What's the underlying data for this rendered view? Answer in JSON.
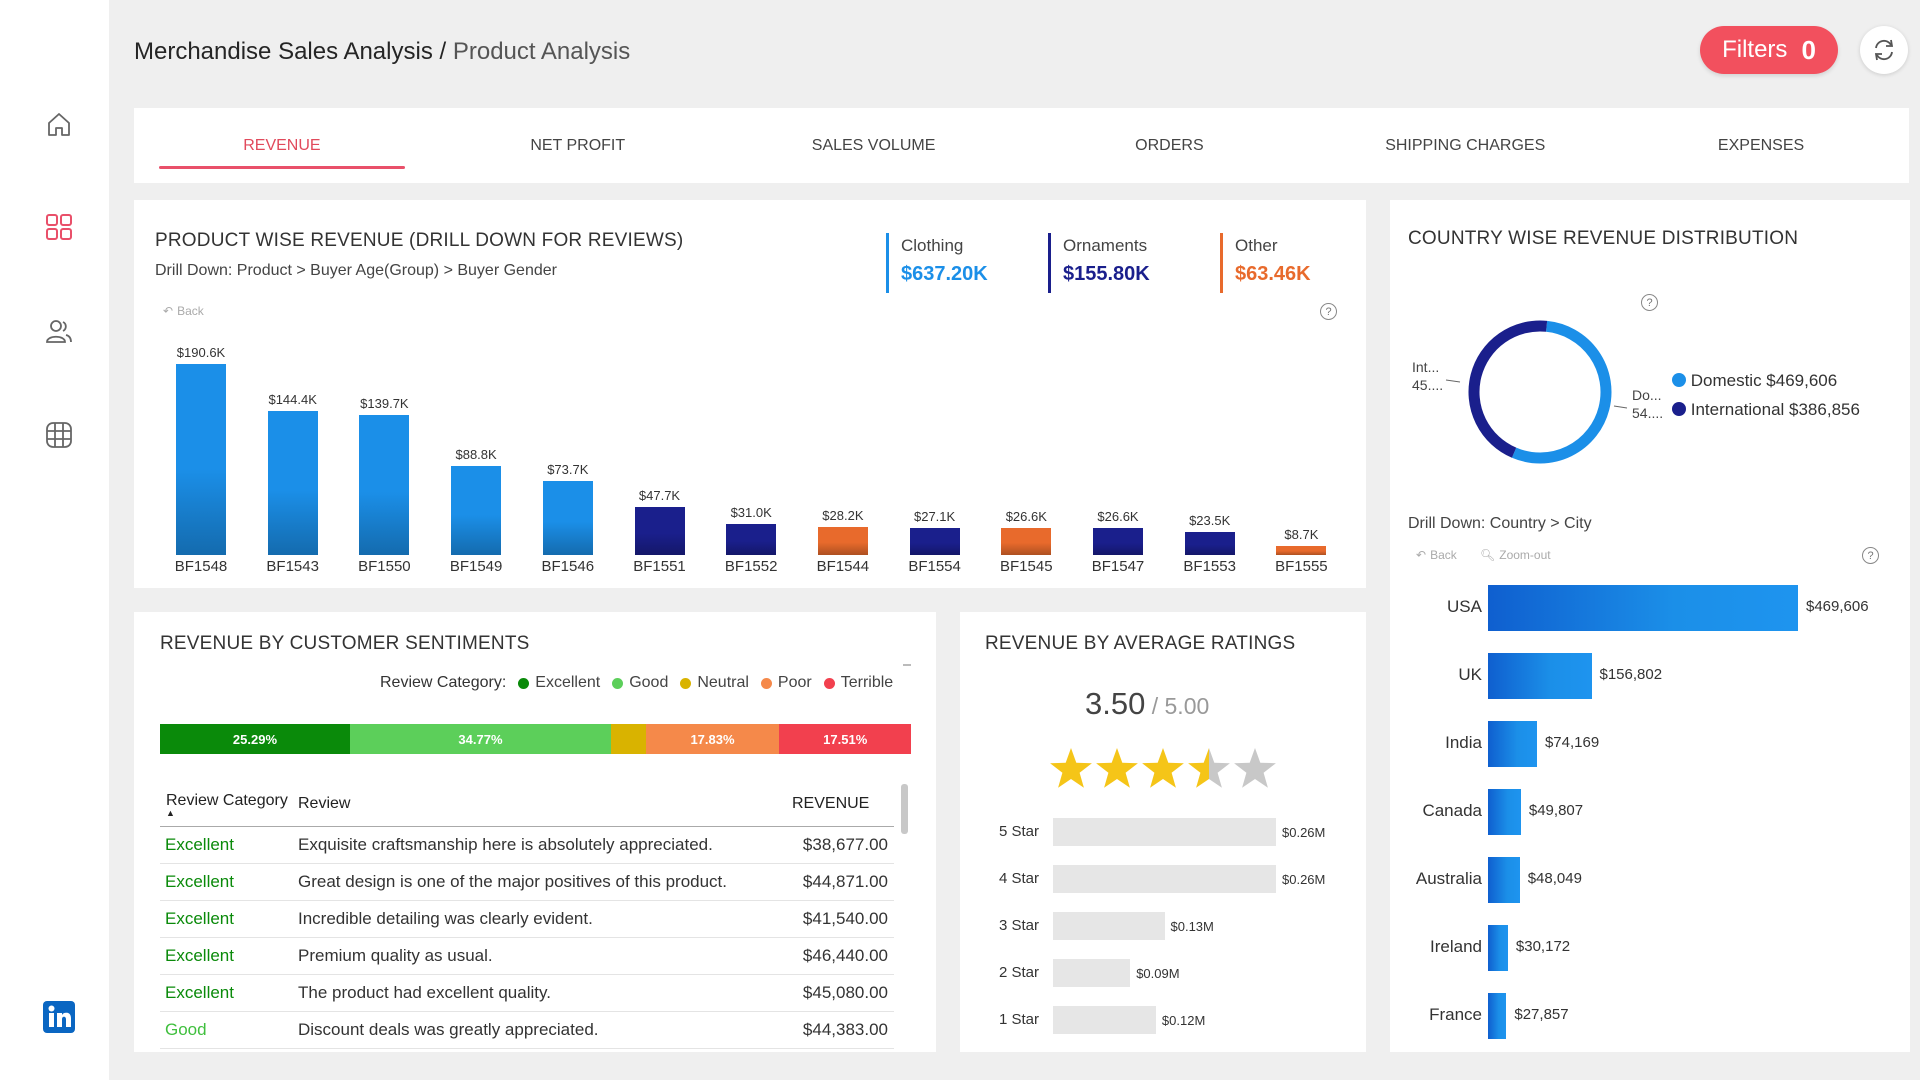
{
  "header": {
    "title": "Merchandise Sales Analysis",
    "separator": " / ",
    "subtitle": "Product Analysis",
    "filters_label": "Filters",
    "filters_count": "0"
  },
  "sidebar": {
    "items": [
      {
        "name": "home"
      },
      {
        "name": "dashboard"
      },
      {
        "name": "users"
      },
      {
        "name": "globe"
      },
      {
        "name": "linkedin"
      }
    ]
  },
  "tabs": [
    "REVENUE",
    "NET PROFIT",
    "SALES VOLUME",
    "ORDERS",
    "SHIPPING CHARGES",
    "EXPENSES"
  ],
  "product_revenue": {
    "title": "PRODUCT WISE REVENUE (DRILL DOWN FOR REVIEWS)",
    "drill": "Drill Down: Product > Buyer Age(Group) > Buyer Gender",
    "back": "Back",
    "kpis": [
      {
        "label": "Clothing",
        "value": "$637.20K",
        "color": "#1b8fe8"
      },
      {
        "label": "Ornaments",
        "value": "$155.80K",
        "color": "#1a1f8c"
      },
      {
        "label": "Other",
        "value": "$63.46K",
        "color": "#e86a2c"
      }
    ]
  },
  "chart_data": [
    {
      "type": "bar",
      "categories": [
        "BF1548",
        "BF1543",
        "BF1550",
        "BF1549",
        "BF1546",
        "BF1551",
        "BF1552",
        "BF1544",
        "BF1554",
        "BF1545",
        "BF1547",
        "BF1553",
        "BF1555"
      ],
      "values": [
        190.6,
        144.4,
        139.7,
        88.8,
        73.7,
        47.7,
        31.0,
        28.2,
        27.1,
        26.6,
        26.6,
        23.5,
        8.7
      ],
      "data_labels": [
        "$190.6K",
        "$144.4K",
        "$139.7K",
        "$88.8K",
        "$73.7K",
        "$47.7K",
        "$31.0K",
        "$28.2K",
        "$27.1K",
        "$26.6K",
        "$26.6K",
        "$23.5K",
        "$8.7K"
      ],
      "groups": [
        "Clothing",
        "Clothing",
        "Clothing",
        "Clothing",
        "Clothing",
        "Ornaments",
        "Ornaments",
        "Other",
        "Ornaments",
        "Other",
        "Ornaments",
        "Ornaments",
        "Other"
      ],
      "colors": {
        "Clothing": "#1b8fe8",
        "Ornaments": "#1a1f8c",
        "Other": "#e86a2c"
      },
      "title": "PRODUCT WISE REVENUE (DRILL DOWN FOR REVIEWS)",
      "ylim": [
        0,
        200
      ]
    },
    {
      "type": "pie",
      "title": "COUNTRY WISE REVENUE DISTRIBUTION",
      "categories": [
        "Domestic",
        "International"
      ],
      "values": [
        469606,
        386856
      ],
      "legend": [
        "Domestic $469,606",
        "International $386,856"
      ],
      "slice_labels": [
        "Do...\n54....",
        "Int...\n45...."
      ],
      "colors": [
        "#1b8fe8",
        "#1a1f8c"
      ]
    },
    {
      "type": "bar",
      "title": "Drill Down: Country > City",
      "categories": [
        "USA",
        "UK",
        "India",
        "Canada",
        "Australia",
        "Ireland",
        "France"
      ],
      "values": [
        469606,
        156802,
        74169,
        49807,
        48049,
        30172,
        27857
      ],
      "data_labels": [
        "$469,606",
        "$156,802",
        "$74,169",
        "$49,807",
        "$48,049",
        "$30,172",
        "$27,857"
      ],
      "orientation": "horizontal"
    },
    {
      "type": "bar",
      "title": "REVENUE BY AVERAGE RATINGS",
      "categories": [
        "5 Star",
        "4 Star",
        "3 Star",
        "2 Star",
        "1 Star"
      ],
      "values": [
        0.26,
        0.26,
        0.13,
        0.09,
        0.12
      ],
      "data_labels": [
        "$0.26M",
        "$0.26M",
        "$0.13M",
        "$0.09M",
        "$0.12M"
      ],
      "orientation": "horizontal"
    },
    {
      "type": "bar",
      "title": "REVENUE BY CUSTOMER SENTIMENTS",
      "stacked": true,
      "categories": [
        "Excellent",
        "Good",
        "Neutral",
        "Poor",
        "Terrible"
      ],
      "values": [
        25.29,
        34.77,
        4.6,
        17.83,
        17.51
      ],
      "data_labels": [
        "25.29%",
        "34.77%",
        "",
        "17.83%",
        "17.51%"
      ],
      "colors": [
        "#0a8a0a",
        "#5ccf5a",
        "#d9b300",
        "#f5894a",
        "#f2404e"
      ]
    }
  ],
  "sentiments": {
    "title": "REVENUE BY CUSTOMER SENTIMENTS",
    "legend_title": "Review Category:",
    "legend": [
      {
        "label": "Excellent",
        "color": "#0a8a0a"
      },
      {
        "label": "Good",
        "color": "#5ccf5a"
      },
      {
        "label": "Neutral",
        "color": "#d9b300"
      },
      {
        "label": "Poor",
        "color": "#f5894a"
      },
      {
        "label": "Terrible",
        "color": "#f2404e"
      }
    ],
    "columns": [
      "Review Category",
      "Review",
      "REVENUE"
    ],
    "rows": [
      {
        "category": "Excellent",
        "review": "Exquisite craftsmanship here is absolutely appreciated.",
        "revenue": "$38,677.00",
        "color": "#0a8a0a"
      },
      {
        "category": "Excellent",
        "review": "Great design is one of the major positives of this product.",
        "revenue": "$44,871.00",
        "color": "#0a8a0a"
      },
      {
        "category": "Excellent",
        "review": "Incredible detailing was clearly evident.",
        "revenue": "$41,540.00",
        "color": "#0a8a0a"
      },
      {
        "category": "Excellent",
        "review": "Premium quality as usual.",
        "revenue": "$46,440.00",
        "color": "#0a8a0a"
      },
      {
        "category": "Excellent",
        "review": "The product had excellent quality.",
        "revenue": "$45,080.00",
        "color": "#0a8a0a"
      },
      {
        "category": "Good",
        "review": "Discount deals was greatly appreciated.",
        "revenue": "$44,383.00",
        "color": "#3fbf3d"
      }
    ]
  },
  "ratings": {
    "title": "REVENUE BY AVERAGE RATINGS",
    "average": "3.50",
    "max": " / 5.00",
    "stars_value": 3.5
  },
  "country": {
    "title": "COUNTRY WISE REVENUE DISTRIBUTION",
    "drill": "Drill Down: Country > City",
    "back": "Back",
    "zoom_out": "Zoom-out"
  }
}
